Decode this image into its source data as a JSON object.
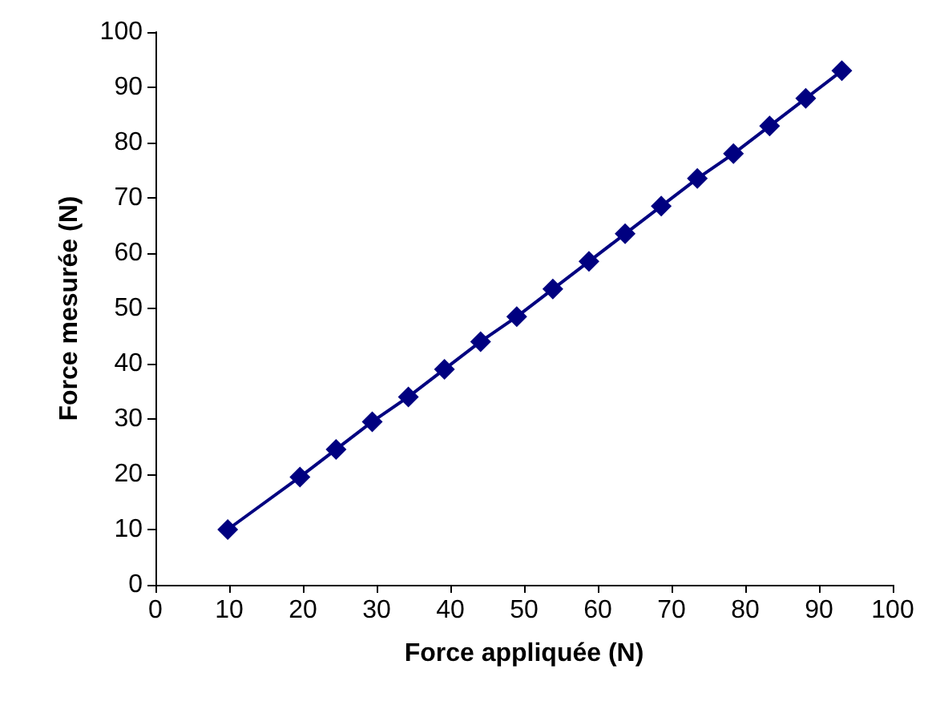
{
  "chart_data": {
    "type": "line",
    "xlabel": "Force appliquée (N)",
    "ylabel": "Force mesurée (N)",
    "x": [
      9.8,
      19.6,
      24.5,
      29.4,
      34.3,
      39.2,
      44.1,
      49,
      53.9,
      58.8,
      63.7,
      68.6,
      73.5,
      78.4,
      83.3,
      88.2,
      93.1
    ],
    "series": [
      {
        "color": "#000080",
        "values": [
          10,
          19.5,
          24.5,
          29.5,
          34,
          39,
          44,
          48.5,
          53.5,
          58.5,
          63.5,
          68.5,
          73.5,
          78,
          83,
          88,
          93
        ]
      }
    ],
    "xlim": [
      0,
      100
    ],
    "xticks": [
      0,
      10,
      20,
      30,
      40,
      50,
      60,
      70,
      80,
      90,
      100
    ],
    "ylim": [
      0,
      100
    ],
    "yticks": [
      0,
      10,
      20,
      30,
      40,
      50,
      60,
      70,
      80,
      90,
      100
    ],
    "marker": "diamond",
    "line_style": "solid"
  }
}
